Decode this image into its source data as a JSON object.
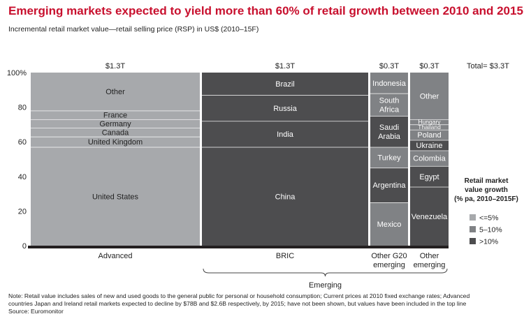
{
  "title": "Emerging markets expected to yield more than 60% of retail growth between 2010 and 2015",
  "subtitle": "Incremental retail market value—retail selling price (RSP) in US$ (2010–15F)",
  "total_label": "Total= $3.3T",
  "legend": {
    "title_lines": [
      "Retail market",
      "value growth",
      "(% pa, 2010–2015F)"
    ],
    "items": [
      {
        "label": "<=5%",
        "color": "#a7a9ac"
      },
      {
        "label": "5–10%",
        "color": "#808285"
      },
      {
        "label": ">10%",
        "color": "#4d4d4f"
      }
    ]
  },
  "bracket_label": "Emerging",
  "note": {
    "lines": [
      "Note: Retail value includes sales of new and used goods to the general public for personal or household consumption; Current prices at 2010 fixed exchange rates; Advanced",
      "countries Japan and Ireland retail markets expected to decline by $78B and $2.6B respectively, by 2015; have not been shown, but values have been included in the top line",
      "Source: Euromonitor"
    ]
  },
  "chart_data": {
    "type": "bar",
    "subtype": "marimekko",
    "ylim": [
      0,
      100
    ],
    "yticks": [
      0,
      20,
      40,
      60,
      80,
      100
    ],
    "ytick_labels": [
      "0",
      "20",
      "40",
      "60",
      "80",
      "100%"
    ],
    "columns": [
      {
        "label_lines": [
          "Advanced"
        ],
        "total_label": "$1.3T",
        "width": 1.3,
        "segments": [
          {
            "name": "United States",
            "share": 57,
            "growth": "<=5%"
          },
          {
            "name": "United Kingdom",
            "share": 6,
            "growth": "<=5%"
          },
          {
            "name": "Canada",
            "share": 5,
            "growth": "<=5%"
          },
          {
            "name": "Germany",
            "share": 5,
            "growth": "<=5%"
          },
          {
            "name": "France",
            "share": 5,
            "growth": "<=5%"
          },
          {
            "name": "Other",
            "share": 22,
            "growth": "<=5%"
          }
        ]
      },
      {
        "label_lines": [
          "BRIC"
        ],
        "total_label": "$1.3T",
        "width": 1.3,
        "segments": [
          {
            "name": "China",
            "share": 57,
            "growth": ">10%"
          },
          {
            "name": "India",
            "share": 15,
            "growth": ">10%"
          },
          {
            "name": "Russia",
            "share": 15,
            "growth": ">10%"
          },
          {
            "name": "Brazil",
            "share": 13,
            "growth": ">10%"
          }
        ]
      },
      {
        "label_lines": [
          "Other G20",
          "emerging"
        ],
        "total_label": "$0.3T",
        "width": 0.3,
        "segments": [
          {
            "name": "Mexico",
            "share": 25,
            "growth": "5–10%"
          },
          {
            "name": "Argentina",
            "share": 20,
            "growth": ">10%"
          },
          {
            "name": "Turkey",
            "share": 12,
            "growth": "5–10%"
          },
          {
            "name": "Saudi Arabia",
            "share": 18,
            "growth": ">10%"
          },
          {
            "name": "South Africa",
            "share": 13,
            "growth": "5–10%"
          },
          {
            "name": "Indonesia",
            "share": 12,
            "growth": "5–10%"
          }
        ]
      },
      {
        "label_lines": [
          "Other",
          "emerging"
        ],
        "total_label": "$0.3T",
        "width": 0.3,
        "segments": [
          {
            "name": "Venezuela",
            "share": 34,
            "growth": ">10%"
          },
          {
            "name": "Egypt",
            "share": 12,
            "growth": ">10%"
          },
          {
            "name": "Colombia",
            "share": 9,
            "growth": "5–10%"
          },
          {
            "name": "Ukraine",
            "share": 6,
            "growth": ">10%"
          },
          {
            "name": "Poland",
            "share": 6,
            "growth": "5–10%"
          },
          {
            "name": "Thailand",
            "share": 3,
            "growth": "5–10%"
          },
          {
            "name": "Hungary",
            "share": 3,
            "growth": "5–10%"
          },
          {
            "name": "Other",
            "share": 27,
            "growth": "5–10%"
          }
        ]
      }
    ]
  }
}
